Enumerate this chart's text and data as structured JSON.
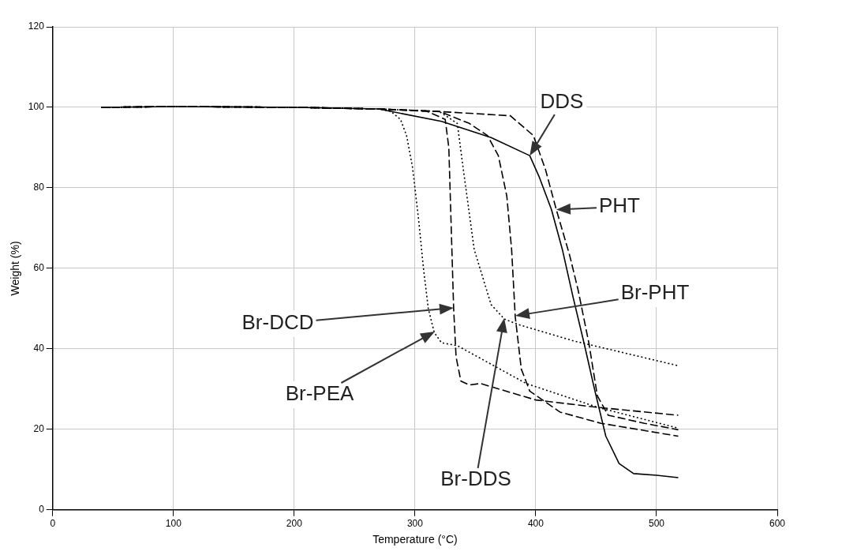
{
  "chart_data": {
    "type": "line",
    "xlabel": "Temperature (°C)",
    "ylabel": "Weight (%)",
    "xlim": [
      0,
      600
    ],
    "xticks": [
      0,
      100,
      200,
      300,
      400,
      500,
      600
    ],
    "ylim": [
      0,
      120
    ],
    "yticks": [
      0,
      20,
      40,
      60,
      80,
      100,
      120
    ],
    "grid": true,
    "legend": false,
    "marker": "none",
    "annotations": [
      {
        "text": "DDS",
        "x": 395,
        "y": 88
      },
      {
        "text": "PHT",
        "x": 417,
        "y": 74.6
      },
      "Br-PHT",
      "Br-DCD",
      "Br-PEA",
      "Br-DDS"
    ],
    "series": [
      {
        "color": "#000000",
        "line_style": "solid",
        "x": [
          40,
          100,
          200,
          270,
          322,
          363,
          395,
          403,
          413,
          422,
          431,
          440,
          449,
          458,
          469,
          481,
          500,
          518
        ],
        "values": [
          100,
          100.2,
          100,
          99.6,
          96.5,
          92.5,
          88,
          82.6,
          74.6,
          64.7,
          52.7,
          41.4,
          29.5,
          18.3,
          11.5,
          9,
          8.6,
          8
        ]
      },
      {
        "color": "#000000",
        "line_style": "dashed",
        "x": [
          40,
          100,
          200,
          270,
          330,
          379,
          398,
          408,
          417,
          428,
          435,
          444,
          451,
          460,
          490,
          518
        ],
        "values": [
          100,
          100.2,
          100,
          99.6,
          98.8,
          97.9,
          93,
          84.6,
          74.6,
          63.3,
          54.7,
          41.4,
          28.3,
          23.5,
          21.5,
          19.9
        ]
      },
      {
        "color": "#000000",
        "line_style": "dashed",
        "x": [
          40,
          100,
          200,
          270,
          320,
          345,
          360,
          369,
          376,
          380,
          383,
          388,
          395,
          420,
          454,
          518
        ],
        "values": [
          100,
          100.2,
          100,
          99.6,
          99,
          96,
          93,
          88,
          78,
          64.7,
          48,
          35,
          29.5,
          24.3,
          21.5,
          18.3
        ]
      },
      {
        "color": "#000000",
        "line_style": "dashed",
        "x": [
          40,
          100,
          200,
          270,
          310,
          325,
          328,
          330,
          332,
          334,
          338,
          345,
          354,
          400,
          450,
          518
        ],
        "values": [
          100,
          100.2,
          100,
          99.6,
          99,
          97,
          90,
          70,
          50,
          38,
          32,
          31,
          31.4,
          27.3,
          25.5,
          23.5
        ]
      },
      {
        "color": "#000000",
        "line_style": "dotted",
        "x": [
          40,
          100,
          200,
          270,
          280,
          288,
          293,
          298,
          303,
          307,
          311,
          316,
          322,
          335,
          392,
          451,
          518
        ],
        "values": [
          100,
          100.2,
          100,
          99.6,
          99,
          97,
          93,
          85,
          72,
          60,
          50,
          44,
          41.5,
          40.8,
          31.4,
          25.5,
          20.3
        ]
      },
      {
        "color": "#000000",
        "line_style": "dotted",
        "x": [
          40,
          100,
          200,
          270,
          320,
          335,
          340,
          349,
          363,
          374,
          386,
          431,
          518
        ],
        "values": [
          100,
          100.2,
          100,
          99.6,
          99,
          96,
          84.6,
          64.7,
          51,
          47.4,
          46,
          42,
          35.8
        ]
      }
    ]
  }
}
